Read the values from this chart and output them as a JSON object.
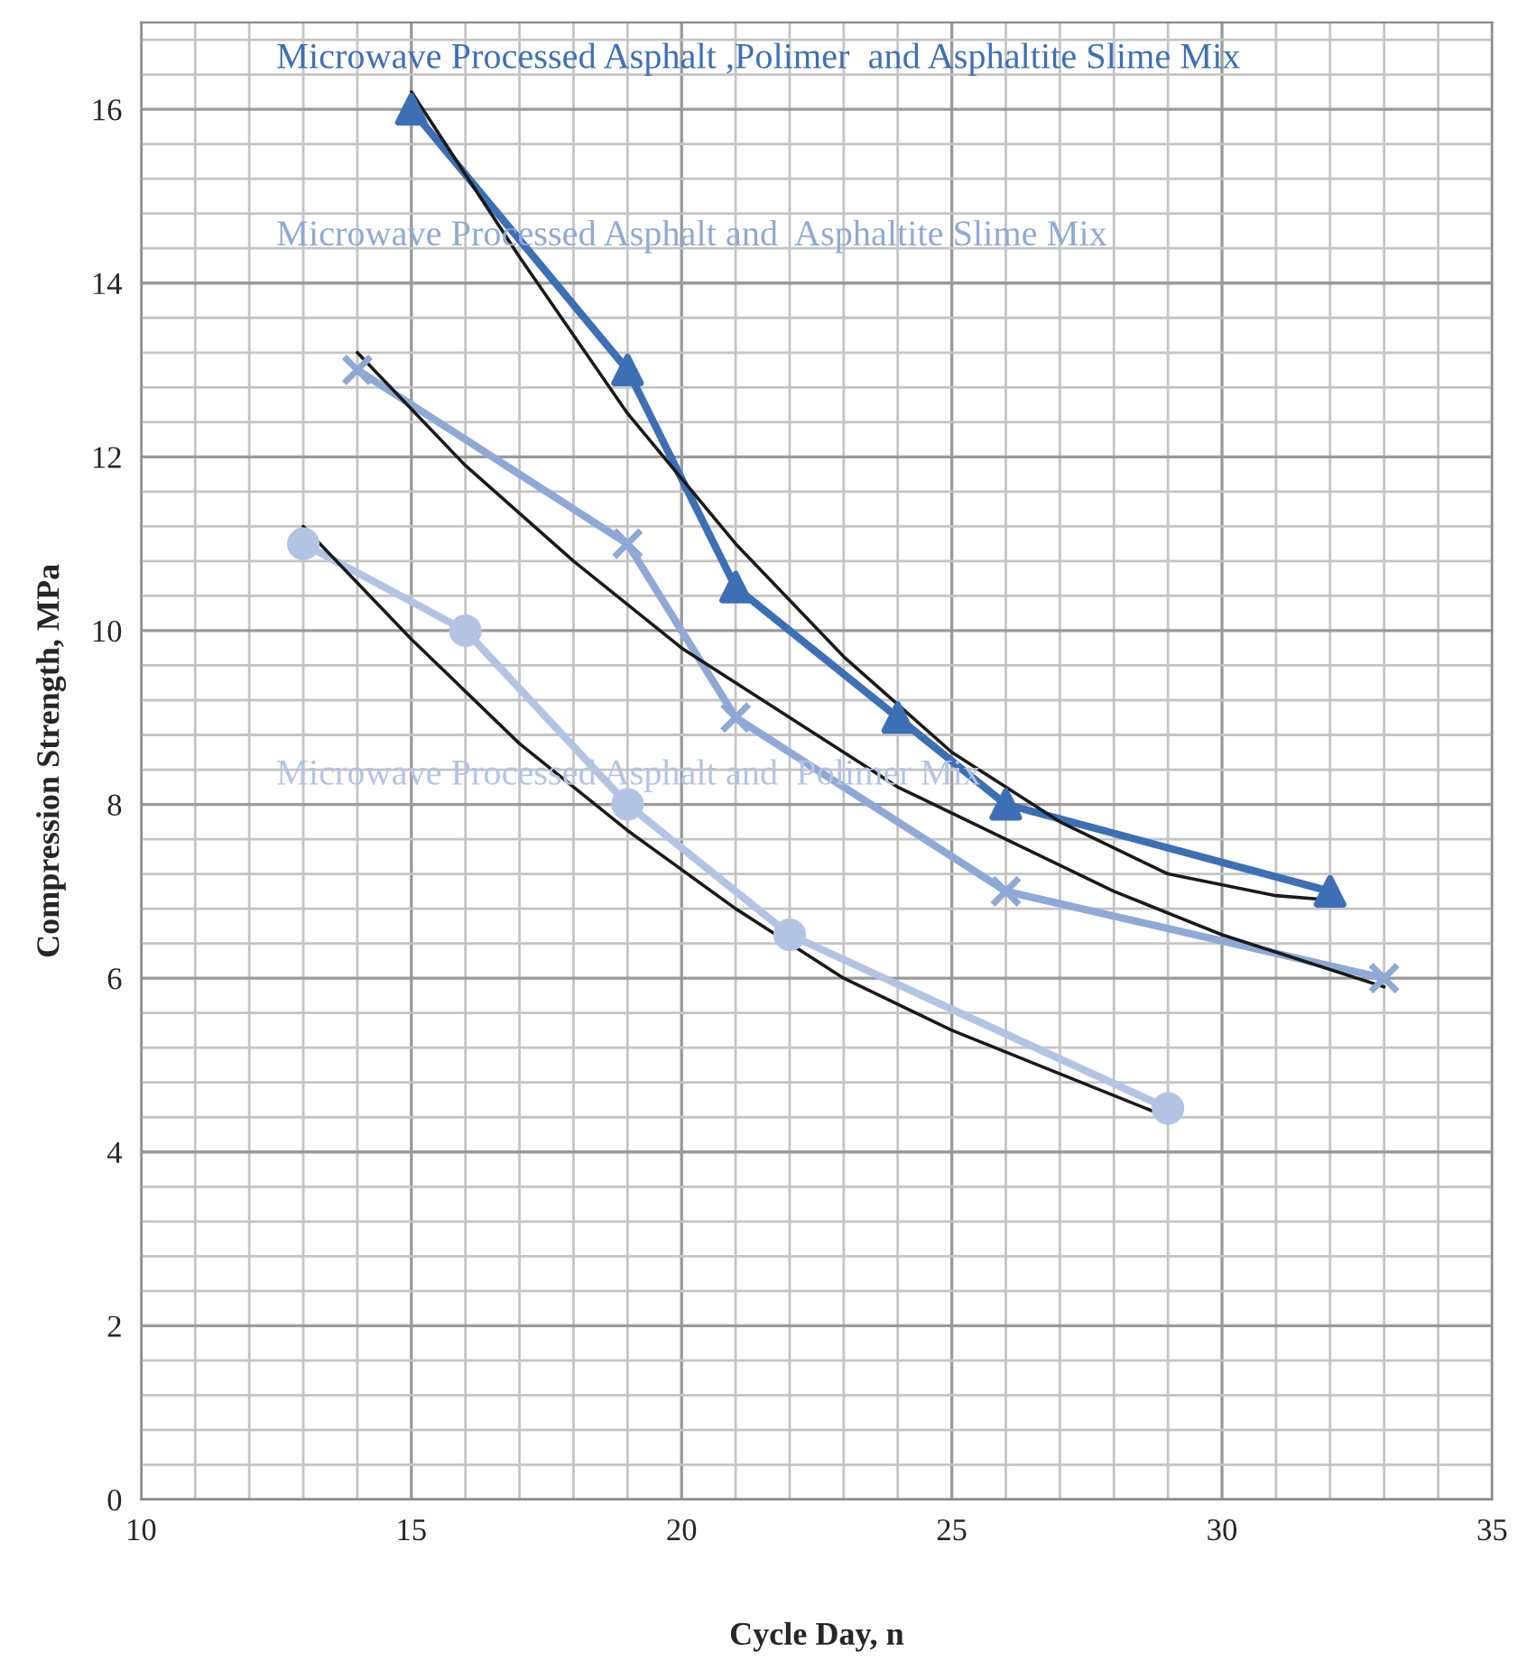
{
  "chart_data": {
    "type": "line",
    "xlabel": "Cycle Day, n",
    "ylabel": "Compression Strength, MPa",
    "xlim": [
      10,
      35
    ],
    "xticks": [
      10,
      15,
      20,
      25,
      30,
      35
    ],
    "ylim": [
      0,
      17
    ],
    "yticks": [
      0,
      2,
      4,
      6,
      8,
      10,
      12,
      14,
      16
    ],
    "grid": true,
    "legend": false,
    "series": [
      {
        "name": "Microwave Processed Asphalt ,Polimer  and Asphaltite Slime Mix",
        "color": "#3d6fb5",
        "marker": "triangle",
        "x": [
          15,
          19,
          21,
          24,
          26,
          32
        ],
        "values": [
          16,
          13,
          10.5,
          9,
          8,
          7
        ]
      },
      {
        "name": "Microwave Processed Asphalt and  Asphaltite Slime Mix",
        "color": "#8fa9d6",
        "marker": "cross",
        "x": [
          14,
          19,
          21,
          26,
          33
        ],
        "values": [
          13,
          11,
          9,
          7,
          6
        ]
      },
      {
        "name": "Microwave Processed Asphalt and  Polimer Mix",
        "color": "#b3c3e3",
        "marker": "circle",
        "x": [
          13,
          16,
          19,
          22,
          29
        ],
        "values": [
          11,
          10,
          8,
          6.5,
          4.5
        ]
      },
      {
        "color": "#1a1a1a",
        "marker": "none",
        "x": [
          15,
          17,
          19,
          21,
          23,
          25,
          27,
          29,
          31,
          32
        ],
        "values": [
          16.2,
          14.3,
          12.5,
          11.0,
          9.7,
          8.6,
          7.8,
          7.2,
          6.95,
          6.9
        ]
      },
      {
        "color": "#1a1a1a",
        "marker": "none",
        "x": [
          14,
          16,
          18,
          20,
          22,
          24,
          26,
          28,
          30,
          33
        ],
        "values": [
          13.2,
          11.9,
          10.8,
          9.8,
          9.0,
          8.2,
          7.6,
          7.0,
          6.5,
          5.9
        ]
      },
      {
        "color": "#1a1a1a",
        "marker": "none",
        "x": [
          13,
          15,
          17,
          19,
          21,
          23,
          25,
          27,
          29
        ],
        "values": [
          11.2,
          9.9,
          8.7,
          7.7,
          6.8,
          6.0,
          5.4,
          4.9,
          4.4
        ]
      }
    ]
  }
}
